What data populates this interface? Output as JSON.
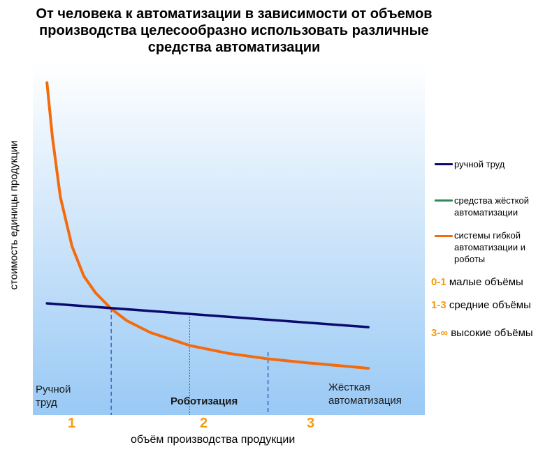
{
  "title_lines": [
    "От человека к автоматизации в зависимости от объемов",
    "производства целесообразно использовать различные",
    "средства автоматизации"
  ],
  "colors": {
    "manual": "#0b0b6e",
    "hard": "#2e8b57",
    "flexible": "#f26b0f",
    "accent": "#f39c12",
    "bg_top": "#ffffff",
    "bg_bottom": "#99c9f5"
  },
  "chart_data": {
    "type": "line",
    "xlabel": "объём производства продукции",
    "ylabel": "стоимость единицы продукции",
    "x_ticks": [
      "1",
      "2",
      "3"
    ],
    "series": [
      {
        "name": "ручной труд",
        "color": "#0b0b6e",
        "points": [
          [
            0.18,
            0.775
          ],
          [
            4.28,
            0.535
          ]
        ]
      },
      {
        "name": "средства жёсткой автоматизации",
        "color": "#2e8b57",
        "points": []
      },
      {
        "name": "системы гибкой автоматизации и роботы",
        "color": "#f26b0f",
        "points": [
          [
            0.18,
            3.0
          ],
          [
            0.25,
            2.45
          ],
          [
            0.35,
            1.85
          ],
          [
            0.5,
            1.35
          ],
          [
            0.65,
            1.05
          ],
          [
            0.8,
            0.88
          ],
          [
            1.0,
            0.72
          ],
          [
            1.2,
            0.6
          ],
          [
            1.5,
            0.48
          ],
          [
            2.0,
            0.35
          ],
          [
            2.5,
            0.27
          ],
          [
            3.0,
            0.215
          ],
          [
            3.5,
            0.175
          ],
          [
            4.0,
            0.14
          ],
          [
            4.28,
            0.12
          ]
        ]
      }
    ],
    "vlines": [
      1,
      2,
      3
    ],
    "xlim": [
      0,
      5
    ],
    "ylim": [
      -0.35,
      3.2
    ],
    "zones": {
      "left": [
        "Ручной",
        "труд"
      ],
      "center": "Роботизация",
      "right": [
        "Жёсткая",
        "автоматизация"
      ]
    },
    "legend": [
      {
        "label_lines": [
          "ручной труд"
        ],
        "color": "#0b0b6e"
      },
      {
        "label_lines": [
          "средства  жёсткой",
          "автоматизации"
        ],
        "color": "#2e8b57"
      },
      {
        "label_lines": [
          "системы  гибкой",
          "автоматизации  и",
          "роботы"
        ],
        "color": "#f26b0f"
      }
    ],
    "volume_notes": [
      {
        "range": "0-1",
        "text": "малые объёмы"
      },
      {
        "range": "1-3",
        "text": "средние объёмы"
      },
      {
        "range": "3-∞",
        "text": "высокие объёмы"
      }
    ]
  }
}
